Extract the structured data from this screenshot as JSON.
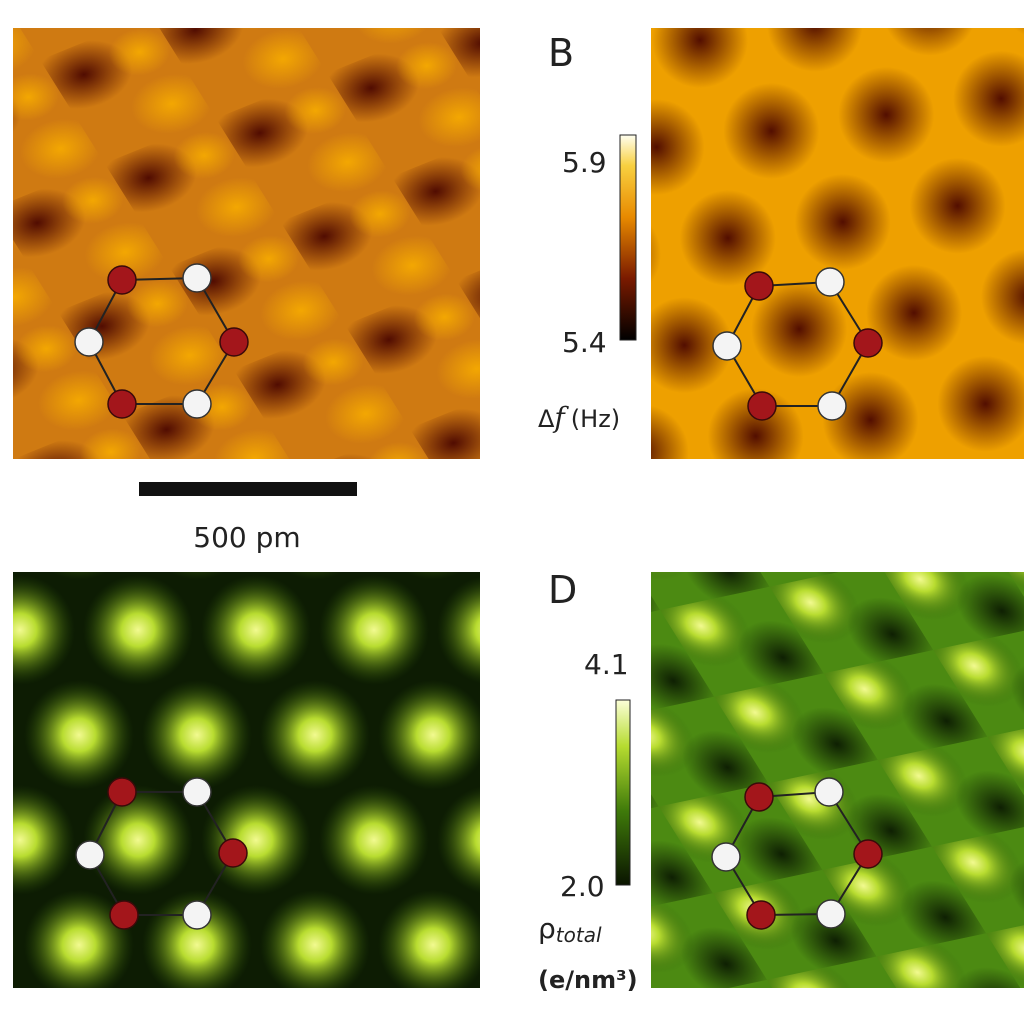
{
  "panel_b": {
    "label": "B"
  },
  "panel_d": {
    "label": "D"
  },
  "scale_bar": {
    "label": "500 pm"
  },
  "colorbar_df": {
    "max": "5.9",
    "min": "5.4",
    "symbol": "Δ",
    "variable": "f",
    "unit": "(Hz)"
  },
  "colorbar_rho": {
    "max": "4.1",
    "min": "2.0",
    "symbol": "ρ",
    "subscript": "total",
    "unit": "(e/nm³)"
  }
}
